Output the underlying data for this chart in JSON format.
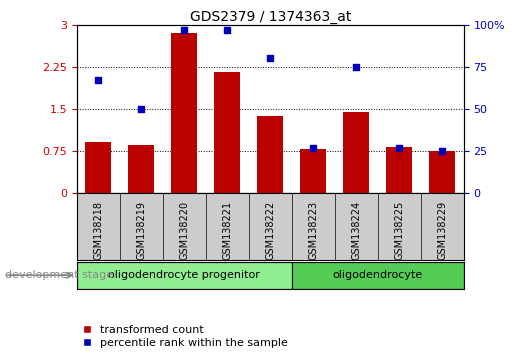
{
  "title": "GDS2379 / 1374363_at",
  "samples": [
    "GSM138218",
    "GSM138219",
    "GSM138220",
    "GSM138221",
    "GSM138222",
    "GSM138223",
    "GSM138224",
    "GSM138225",
    "GSM138229"
  ],
  "bar_values": [
    0.9,
    0.85,
    2.85,
    2.15,
    1.38,
    0.78,
    1.45,
    0.82,
    0.75
  ],
  "scatter_values": [
    67,
    50,
    97,
    97,
    80,
    27,
    75,
    27,
    25
  ],
  "bar_color": "#bb0000",
  "scatter_color": "#0000bb",
  "ylim_left": [
    0,
    3
  ],
  "ylim_right": [
    0,
    100
  ],
  "yticks_left": [
    0,
    0.75,
    1.5,
    2.25,
    3
  ],
  "ytick_labels_left": [
    "0",
    "0.75",
    "1.5",
    "2.25",
    "3"
  ],
  "yticks_right": [
    0,
    25,
    50,
    75,
    100
  ],
  "ytick_labels_right": [
    "0",
    "25",
    "50",
    "75",
    "100%"
  ],
  "groups": [
    {
      "label": "oligodendrocyte progenitor",
      "start": 0,
      "end": 5,
      "color": "#90ee90"
    },
    {
      "label": "oligodendrocyte",
      "start": 5,
      "end": 9,
      "color": "#55cc55"
    }
  ],
  "dev_stage_label": "development stage",
  "legend_bar_label": "transformed count",
  "legend_scatter_label": "percentile rank within the sample",
  "background_color": "#ffffff",
  "plot_bg_color": "#ffffff",
  "tick_label_color_left": "#cc0000",
  "tick_label_color_right": "#0000cc",
  "xtick_bg_color": "#cccccc",
  "group_border_color": "#000000"
}
